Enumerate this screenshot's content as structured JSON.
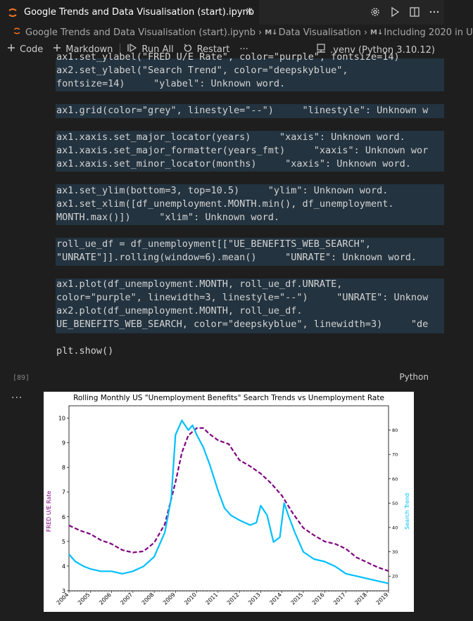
{
  "tab": {
    "title": "Google Trends and Data Visualisation (start).ipynb",
    "close": "×"
  },
  "breadcrumb": {
    "file": "Google Trends and Data Visualisation (start).ipynb",
    "section1": "Data Visualisation",
    "section2": "Including 2020 in U",
    "md_badge": "M↓"
  },
  "toolbar": {
    "code": "Code",
    "markdown": "Markdown",
    "run_all": "Run All",
    "restart": "Restart",
    "more": "···",
    "kernel": ".venv (Python 3.10.12)"
  },
  "cell": {
    "exec_count": "[89]",
    "language": "Python",
    "output_more": "···",
    "lines": [
      "ax1.set_ylabel(\"FRED U/E Rate\", color=\"purple\", fontsize=14)",
      "ax2.set_ylabel(\"Search Trend\", color=\"deepskyblue\",",
      "fontsize=14)     \"ylabel\": Unknown word.",
      "ax1.grid(color=\"grey\", linestyle=\"--\")     \"linestyle\": Unknown w",
      "ax1.xaxis.set_major_locator(years)     \"xaxis\": Unknown word.",
      "ax1.xaxis.set_major_formatter(years_fmt)     \"xaxis\": Unknown wor",
      "ax1.xaxis.set_minor_locator(months)     \"xaxis\": Unknown word.",
      "ax1.set_ylim(bottom=3, top=10.5)     \"ylim\": Unknown word.",
      "ax1.set_xlim([df_unemployment.MONTH.min(), df_unemployment.",
      "MONTH.max()])     \"xlim\": Unknown word.",
      "roll_ue_df = df_unemployment[[\"UE_BENEFITS_WEB_SEARCH\",",
      "\"UNRATE\"]].rolling(window=6).mean()     \"UNRATE\": Unknown word.",
      "ax1.plot(df_unemployment.MONTH, roll_ue_df.UNRATE,",
      "color=\"purple\", linewidth=3, linestyle=\"--\")     \"UNRATE\": Unknow",
      "ax2.plot(df_unemployment.MONTH, roll_ue_df.",
      "UE_BENEFITS_WEB_SEARCH, color=\"deepskyblue\", linewidth=3)     \"de",
      "plt.show()"
    ]
  },
  "chart_data": {
    "type": "line",
    "title": "Rolling Monthly US \"Unemployment Benefits\" Search Trends vs Unemployment Rate",
    "ylabel_left": "FRED U/E Rate",
    "ylabel_right": "Search Trend",
    "xlim": [
      2004.0,
      2019.0
    ],
    "ylim_left": [
      3,
      10.5
    ],
    "ylim_right": [
      14,
      90
    ],
    "x_ticks": [
      "2004",
      "2005",
      "2006",
      "2007",
      "2008",
      "2009",
      "2010",
      "2011",
      "2012",
      "2013",
      "2014",
      "2015",
      "2016",
      "2017",
      "2018",
      "2019"
    ],
    "y_ticks_left": [
      "3",
      "4",
      "5",
      "6",
      "7",
      "8",
      "9",
      "10"
    ],
    "y_ticks_right": [
      "20",
      "30",
      "40",
      "50",
      "60",
      "70",
      "80"
    ],
    "grid": true,
    "colors": {
      "unrate": "#800080",
      "search": "#00bfff",
      "grid": "#808080"
    },
    "series": [
      {
        "key": "unrate",
        "style": "dashed",
        "x": [
          2004.0,
          2004.5,
          2005.0,
          2005.5,
          2006.0,
          2006.5,
          2007.0,
          2007.5,
          2008.0,
          2008.5,
          2009.0,
          2009.3,
          2009.6,
          2010.0,
          2010.3,
          2010.6,
          2011.0,
          2011.5,
          2012.0,
          2012.5,
          2013.0,
          2013.5,
          2014.0,
          2014.5,
          2015.0,
          2015.5,
          2016.0,
          2016.5,
          2017.0,
          2017.5,
          2018.0,
          2018.5,
          2019.0
        ],
        "values": [
          5.65,
          5.45,
          5.3,
          5.05,
          4.9,
          4.65,
          4.55,
          4.6,
          4.95,
          5.7,
          7.4,
          8.6,
          9.3,
          9.6,
          9.6,
          9.35,
          9.1,
          8.95,
          8.3,
          8.05,
          7.75,
          7.35,
          6.85,
          6.15,
          5.55,
          5.25,
          5.0,
          4.9,
          4.7,
          4.35,
          4.15,
          3.95,
          3.8
        ]
      },
      {
        "key": "search",
        "style": "solid",
        "x": [
          2004.0,
          2004.3,
          2004.7,
          2005.0,
          2005.5,
          2006.0,
          2006.5,
          2007.0,
          2007.5,
          2008.0,
          2008.5,
          2008.8,
          2009.0,
          2009.3,
          2009.6,
          2009.8,
          2010.0,
          2010.3,
          2010.6,
          2011.0,
          2011.3,
          2011.6,
          2012.0,
          2012.5,
          2012.8,
          2013.0,
          2013.3,
          2013.6,
          2013.9,
          2014.1,
          2014.3,
          2014.6,
          2015.0,
          2015.5,
          2016.0,
          2016.5,
          2017.0,
          2017.5,
          2018.0,
          2018.5,
          2019.0
        ],
        "values": [
          29,
          26,
          24,
          23,
          22,
          22,
          21,
          22,
          24,
          28,
          38,
          52,
          78,
          84,
          80,
          82,
          78,
          73,
          66,
          55,
          48,
          45,
          43,
          41,
          42,
          49,
          45,
          34,
          36,
          50,
          45,
          38,
          30,
          27,
          26,
          24,
          21,
          20,
          19,
          18,
          17
        ]
      }
    ]
  }
}
